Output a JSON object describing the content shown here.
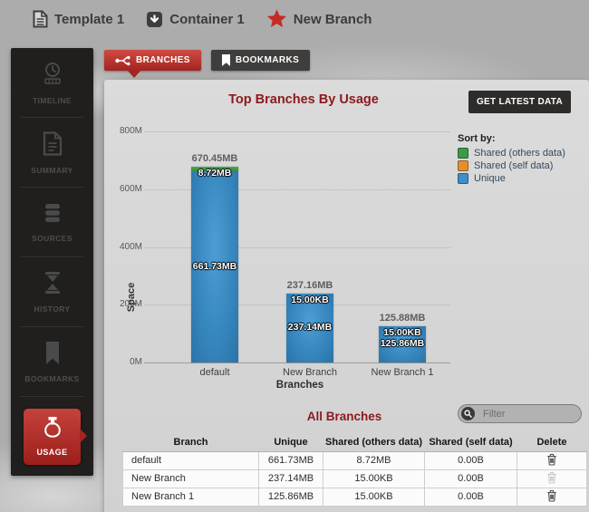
{
  "breadcrumb": {
    "items": [
      {
        "id": "template",
        "label": "Template 1",
        "icon": "document-icon"
      },
      {
        "id": "container",
        "label": "Container 1",
        "icon": "container-icon"
      },
      {
        "id": "new-branch",
        "label": "New Branch",
        "icon": "star-icon"
      }
    ]
  },
  "sidebar": {
    "items": [
      {
        "id": "timeline",
        "label": "TIMELINE",
        "icon": "timeline-icon",
        "active": false
      },
      {
        "id": "summary",
        "label": "SUMMARY",
        "icon": "summary-icon",
        "active": false
      },
      {
        "id": "sources",
        "label": "SOURCES",
        "icon": "sources-icon",
        "active": false
      },
      {
        "id": "history",
        "label": "HISTORY",
        "icon": "history-icon",
        "active": false
      },
      {
        "id": "bookmarks",
        "label": "BOOKMARKS",
        "icon": "bookmarks-icon",
        "active": false
      },
      {
        "id": "usage",
        "label": "USAGE",
        "icon": "usage-icon",
        "active": true
      }
    ]
  },
  "tabs": [
    {
      "id": "branches",
      "label": "BRANCHES",
      "icon": "branch-icon",
      "active": true
    },
    {
      "id": "bookmarks",
      "label": "BOOKMARKS",
      "icon": "bookmark-icon",
      "active": false
    }
  ],
  "panel": {
    "title": "Top Branches By Usage",
    "get_latest_data_label": "GET LATEST DATA"
  },
  "chart_data": {
    "type": "bar",
    "stacked": true,
    "title": "Top Branches By Usage",
    "xlabel": "Branches",
    "ylabel": "Space",
    "unit": "MB",
    "ylim": [
      0,
      800
    ],
    "ytick_labels": [
      "0M",
      "200M",
      "400M",
      "600M",
      "800M"
    ],
    "grid": true,
    "categories": [
      "default",
      "New Branch",
      "New Branch 1"
    ],
    "series": [
      {
        "name": "Shared (others data)",
        "color": "#3d9a47",
        "values_mb": [
          8.72,
          0.0146,
          0.0146
        ],
        "labels": [
          "8.72MB",
          "15.00KB",
          "15.00KB"
        ]
      },
      {
        "name": "Shared (self data)",
        "color": "#e2902f",
        "values_mb": [
          0,
          0,
          0
        ],
        "labels": [
          "0.00B",
          "0.00B",
          "0.00B"
        ]
      },
      {
        "name": "Unique",
        "color": "#3c8fc8",
        "values_mb": [
          661.73,
          237.14,
          125.86
        ],
        "labels": [
          "661.73MB",
          "237.14MB",
          "125.86MB"
        ]
      }
    ],
    "totals_mb": [
      670.45,
      237.16,
      125.88
    ],
    "total_labels": [
      "670.45MB",
      "237.16MB",
      "125.88MB"
    ],
    "legend": {
      "title": "Sort by:",
      "position": "right",
      "entries": [
        {
          "label": "Shared (others data)",
          "color": "#3d9a47"
        },
        {
          "label": "Shared (self data)",
          "color": "#e2902f"
        },
        {
          "label": "Unique",
          "color": "#3c8fc8"
        }
      ]
    }
  },
  "all_branches": {
    "title": "All Branches",
    "filter_placeholder": "Filter",
    "columns": [
      "Branch",
      "Unique",
      "Shared (others data)",
      "Shared (self data)",
      "Delete"
    ],
    "rows": [
      {
        "branch": "default",
        "unique": "661.73MB",
        "shared_others": "8.72MB",
        "shared_self": "0.00B",
        "delete_enabled": true
      },
      {
        "branch": "New Branch",
        "unique": "237.14MB",
        "shared_others": "15.00KB",
        "shared_self": "0.00B",
        "delete_enabled": false
      },
      {
        "branch": "New Branch 1",
        "unique": "125.86MB",
        "shared_others": "15.00KB",
        "shared_self": "0.00B",
        "delete_enabled": true
      }
    ]
  },
  "colors": {
    "accent_red": "#a92622",
    "maroon_title": "#8c191c",
    "bar_blue": "#3c8fc8",
    "bar_green": "#3d9a47",
    "legend_orange": "#e2902f",
    "sidebar_bg": "#201f1e",
    "panel_bg": "#d6d6d6"
  }
}
